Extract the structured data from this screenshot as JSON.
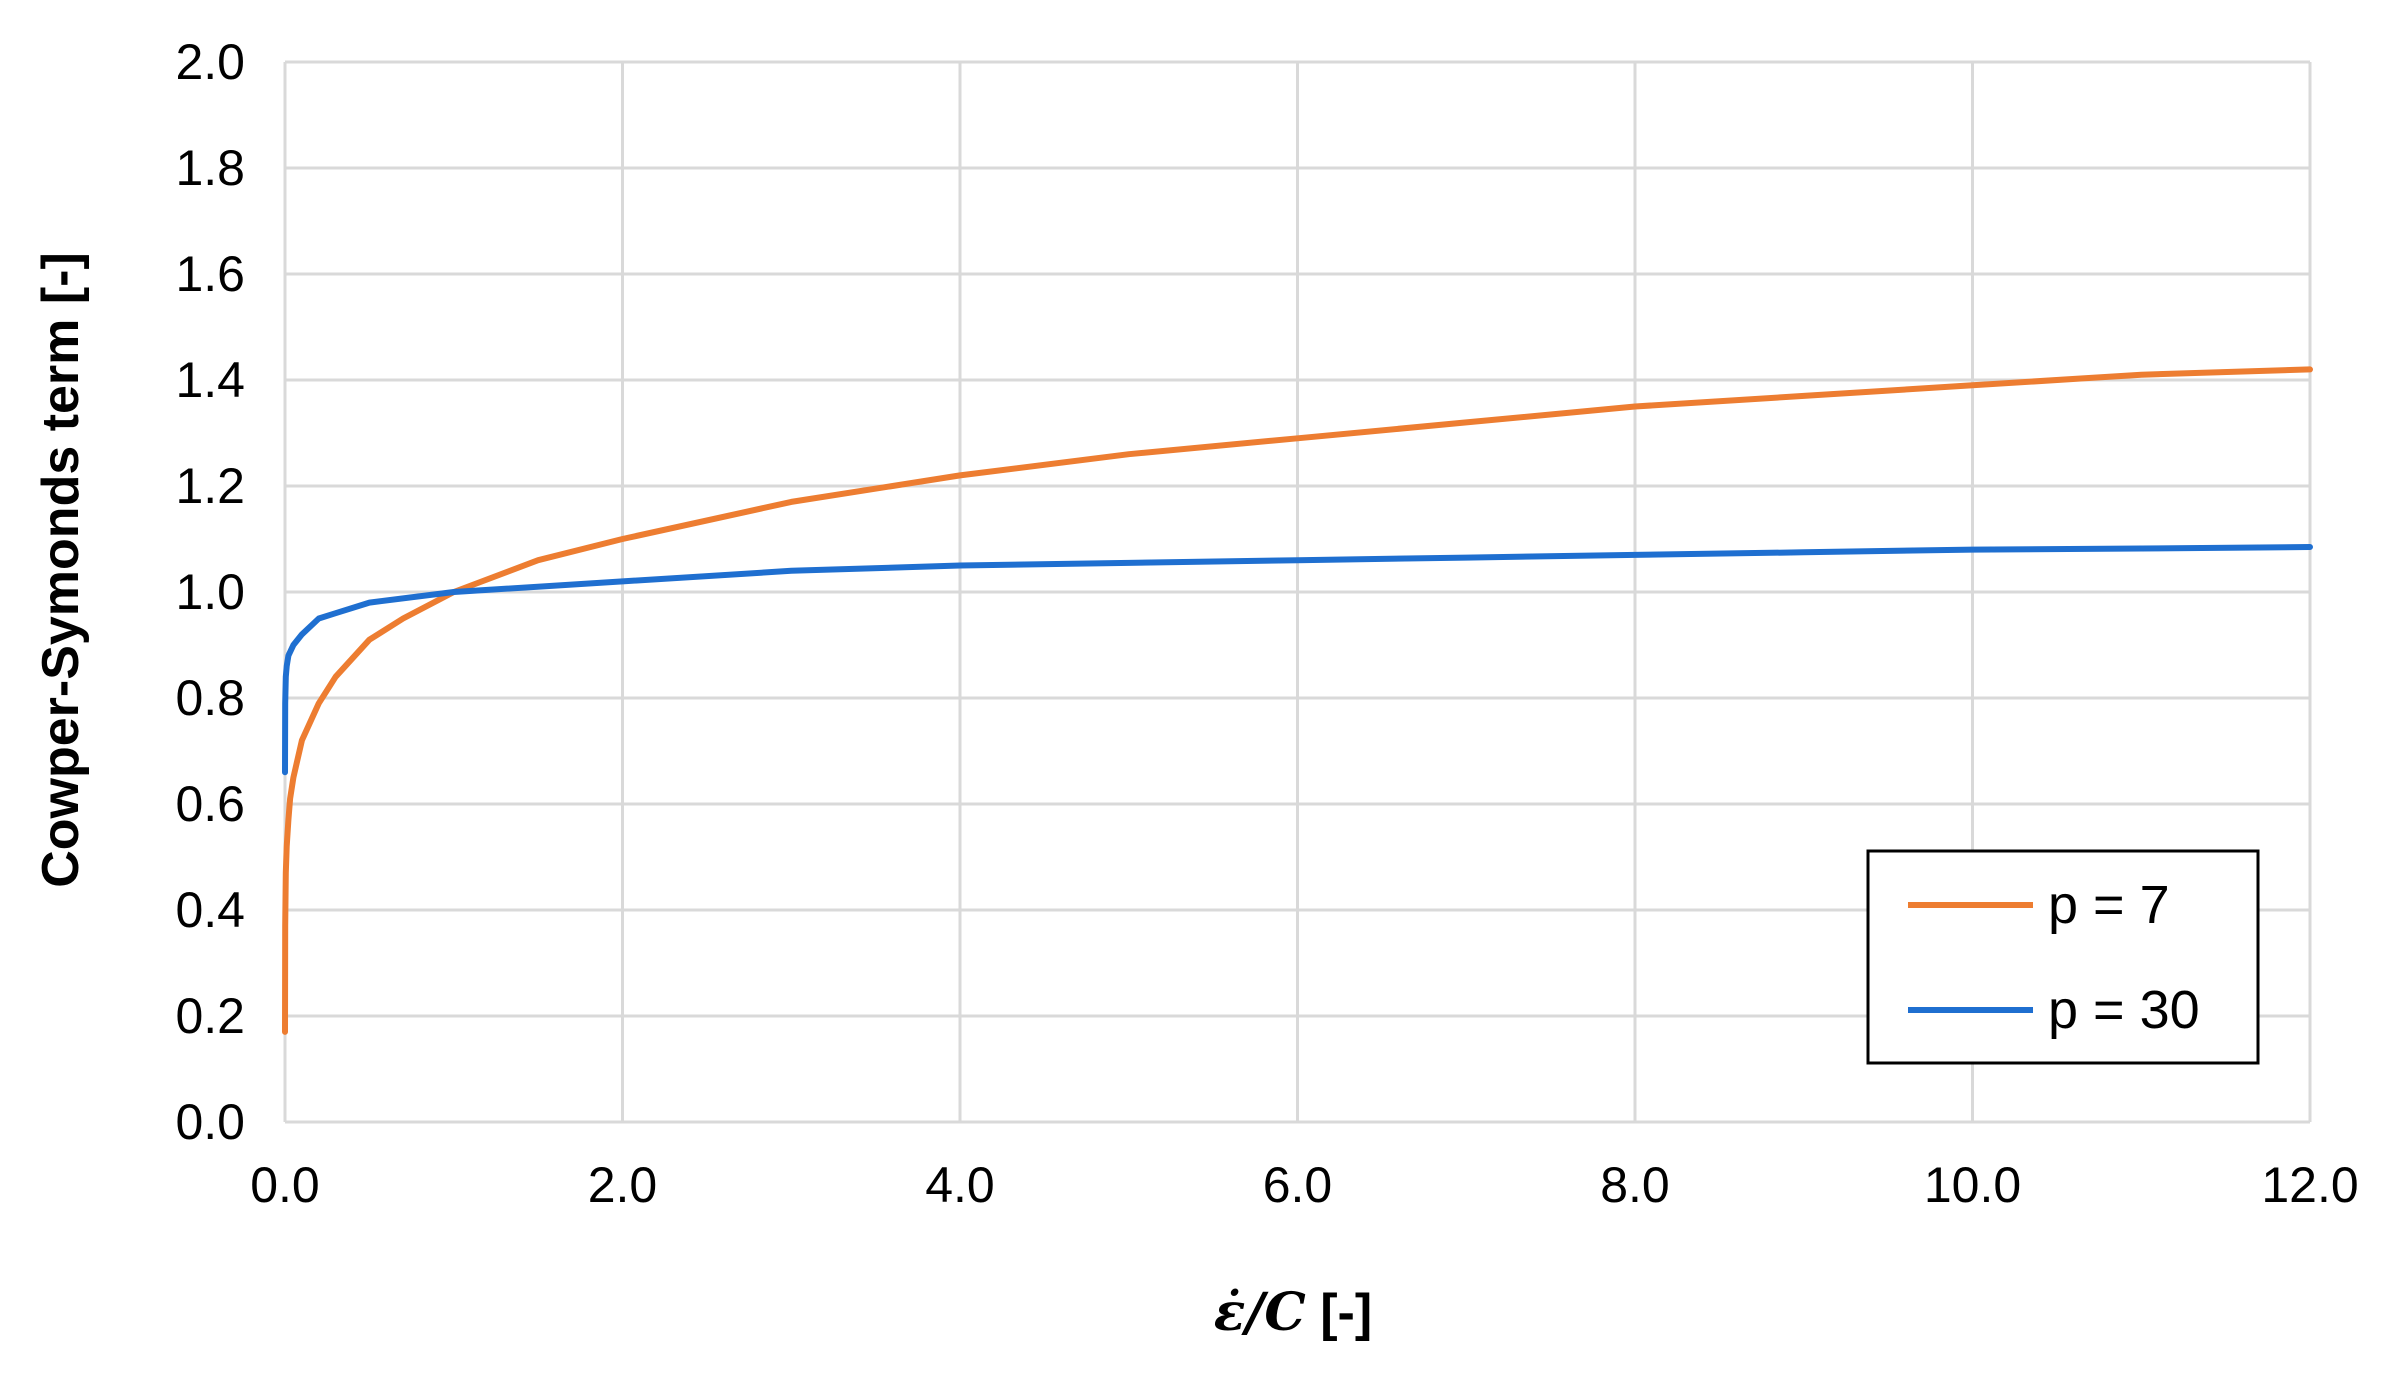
{
  "chart_data": {
    "type": "line",
    "title": "",
    "xlabel": {
      "math": "ε̇/C",
      "unit": " [-]"
    },
    "ylabel": "Cowper-Symonds term [-]",
    "xlim": [
      0,
      12
    ],
    "ylim": [
      0,
      2
    ],
    "x_ticks": [
      "0.0",
      "2.0",
      "4.0",
      "6.0",
      "8.0",
      "10.0",
      "12.0"
    ],
    "y_ticks": [
      "0.0",
      "0.2",
      "0.4",
      "0.6",
      "0.8",
      "1.0",
      "1.2",
      "1.4",
      "1.6",
      "1.8",
      "2.0"
    ],
    "grid": true,
    "legend_position": "bottom-right",
    "series": [
      {
        "name": "p = 7",
        "color": "#ED7D31",
        "points": [
          [
            0.0,
            0.17
          ],
          [
            0.001,
            0.37
          ],
          [
            0.005,
            0.47
          ],
          [
            0.01,
            0.52
          ],
          [
            0.02,
            0.57
          ],
          [
            0.03,
            0.61
          ],
          [
            0.05,
            0.65
          ],
          [
            0.1,
            0.72
          ],
          [
            0.2,
            0.79
          ],
          [
            0.3,
            0.84
          ],
          [
            0.5,
            0.91
          ],
          [
            0.7,
            0.95
          ],
          [
            1.0,
            1.0
          ],
          [
            1.5,
            1.06
          ],
          [
            2.0,
            1.1
          ],
          [
            3.0,
            1.17
          ],
          [
            4.0,
            1.22
          ],
          [
            5.0,
            1.26
          ],
          [
            6.0,
            1.29
          ],
          [
            7.0,
            1.32
          ],
          [
            8.0,
            1.35
          ],
          [
            9.0,
            1.37
          ],
          [
            10.0,
            1.39
          ],
          [
            11.0,
            1.41
          ],
          [
            12.0,
            1.42
          ]
        ]
      },
      {
        "name": "p = 30",
        "color": "#1F6FD0",
        "points": [
          [
            0.0,
            0.66
          ],
          [
            0.001,
            0.79
          ],
          [
            0.005,
            0.84
          ],
          [
            0.01,
            0.86
          ],
          [
            0.02,
            0.88
          ],
          [
            0.05,
            0.9
          ],
          [
            0.1,
            0.92
          ],
          [
            0.2,
            0.95
          ],
          [
            0.3,
            0.96
          ],
          [
            0.5,
            0.98
          ],
          [
            1.0,
            1.0
          ],
          [
            2.0,
            1.02
          ],
          [
            3.0,
            1.04
          ],
          [
            4.0,
            1.05
          ],
          [
            5.0,
            1.055
          ],
          [
            6.0,
            1.06
          ],
          [
            7.0,
            1.065
          ],
          [
            8.0,
            1.07
          ],
          [
            9.0,
            1.075
          ],
          [
            10.0,
            1.08
          ],
          [
            11.0,
            1.082
          ],
          [
            12.0,
            1.085
          ]
        ]
      }
    ]
  }
}
